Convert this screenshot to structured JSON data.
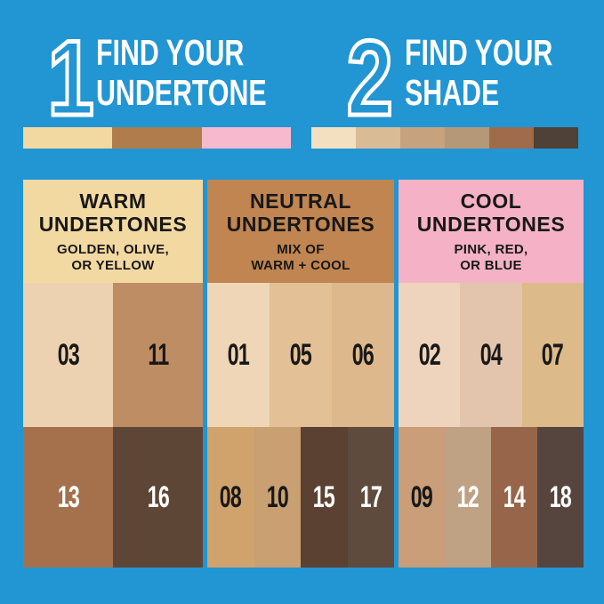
{
  "palette": {
    "background": "#2295d3"
  },
  "steps": [
    {
      "number": "1",
      "title_lines": [
        "FIND YOUR",
        "UNDERTONE"
      ],
      "bar_colors": [
        "#f2d9a1",
        "#b17c4c",
        "#f6b9ce"
      ]
    },
    {
      "number": "2",
      "title_lines": [
        "FIND YOUR",
        "SHADE"
      ],
      "bar_colors": [
        "#f3e0c0",
        "#d9bb95",
        "#c6a27e",
        "#b59877",
        "#9f6b4a",
        "#4f4138"
      ]
    }
  ],
  "columns": [
    {
      "id": "warm",
      "title_lines": [
        "WARM",
        "UNDERTONES"
      ],
      "subtitle_lines": [
        "GOLDEN, OLIVE,",
        "OR YELLOW"
      ],
      "header_bg": "#f2d9a2",
      "light_shades": [
        {
          "label": "03",
          "color": "#edd2b2",
          "text": "#181818"
        },
        {
          "label": "11",
          "color": "#bf8d63",
          "text": "#181818"
        }
      ],
      "dark_shades": [
        {
          "label": "13",
          "color": "#a5704c",
          "text": "#ffffff"
        },
        {
          "label": "16",
          "color": "#5e4637",
          "text": "#ffffff"
        }
      ]
    },
    {
      "id": "neutral",
      "title_lines": [
        "NEUTRAL",
        "UNDERTONES"
      ],
      "subtitle_lines": [
        "MIX OF",
        "WARM + COOL"
      ],
      "header_bg": "#c08551",
      "light_shades": [
        {
          "label": "01",
          "color": "#eed6b6",
          "text": "#181818"
        },
        {
          "label": "05",
          "color": "#e3c096",
          "text": "#181818"
        },
        {
          "label": "06",
          "color": "#ddb88c",
          "text": "#181818"
        }
      ],
      "dark_shades": [
        {
          "label": "08",
          "color": "#d1a36c",
          "text": "#181818"
        },
        {
          "label": "10",
          "color": "#c8a072",
          "text": "#181818"
        },
        {
          "label": "15",
          "color": "#5a4131",
          "text": "#ffffff"
        },
        {
          "label": "17",
          "color": "#5e4b3d",
          "text": "#ffffff"
        }
      ]
    },
    {
      "id": "cool",
      "title_lines": [
        "COOL",
        "UNDERTONES"
      ],
      "subtitle_lines": [
        "PINK, RED,",
        "OR BLUE"
      ],
      "header_bg": "#f5b2c7",
      "light_shades": [
        {
          "label": "02",
          "color": "#eed3bd",
          "text": "#181818"
        },
        {
          "label": "04",
          "color": "#e3c5ae",
          "text": "#181818"
        },
        {
          "label": "07",
          "color": "#ddba8a",
          "text": "#181818"
        }
      ],
      "dark_shades": [
        {
          "label": "09",
          "color": "#c99e78",
          "text": "#181818"
        },
        {
          "label": "12",
          "color": "#bfa183",
          "text": "#ffffff"
        },
        {
          "label": "14",
          "color": "#97664a",
          "text": "#ffffff"
        },
        {
          "label": "18",
          "color": "#55453e",
          "text": "#ffffff"
        }
      ]
    }
  ]
}
